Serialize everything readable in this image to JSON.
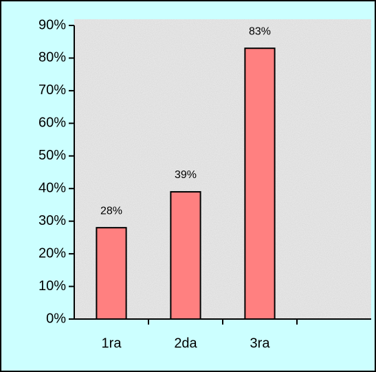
{
  "chart_data": {
    "type": "bar",
    "categories": [
      "1ra",
      "2da",
      "3ra",
      null
    ],
    "values": [
      28,
      39,
      83,
      null
    ],
    "value_labels": [
      "28%",
      "39%",
      "83%",
      null
    ],
    "color": "#ff8080",
    "ylim": [
      0,
      90
    ],
    "yticks": [
      {
        "value": 0,
        "label": "0%"
      },
      {
        "value": 10,
        "label": "10%"
      },
      {
        "value": 20,
        "label": "20%"
      },
      {
        "value": 30,
        "label": "30%"
      },
      {
        "value": 40,
        "label": "40%"
      },
      {
        "value": 50,
        "label": "50%"
      },
      {
        "value": 60,
        "label": "60%"
      },
      {
        "value": 70,
        "label": "70%"
      },
      {
        "value": 80,
        "label": "80%"
      },
      {
        "value": 90,
        "label": "90%"
      }
    ]
  }
}
